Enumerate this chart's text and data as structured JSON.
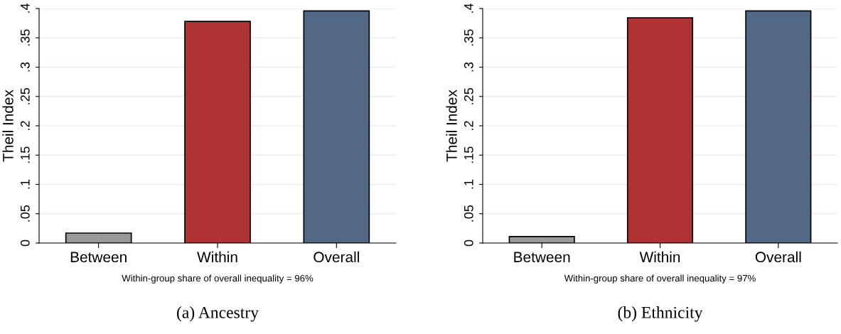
{
  "chart_data": [
    {
      "type": "bar",
      "title": "(a) Ancestry",
      "ylabel": "Theil Index",
      "categories": [
        "Between",
        "Within",
        "Overall"
      ],
      "values": [
        0.017,
        0.378,
        0.396
      ],
      "colors": [
        "#999999",
        "#b03333",
        "#526986"
      ],
      "ylim": [
        0,
        0.4
      ],
      "yticks": [
        {
          "value": 0,
          "label": "0"
        },
        {
          "value": 0.05,
          "label": ".05"
        },
        {
          "value": 0.1,
          "label": ".1"
        },
        {
          "value": 0.15,
          "label": ".15"
        },
        {
          "value": 0.2,
          "label": ".2"
        },
        {
          "value": 0.25,
          "label": ".25"
        },
        {
          "value": 0.3,
          "label": ".3"
        },
        {
          "value": 0.35,
          "label": ".35"
        },
        {
          "value": 0.4,
          "label": ".4"
        }
      ],
      "grid": "y",
      "annotations": [
        "Within-group share of overall inequality = 96%"
      ]
    },
    {
      "type": "bar",
      "title": "(b) Ethnicity",
      "ylabel": "Theil Index",
      "categories": [
        "Between",
        "Within",
        "Overall"
      ],
      "values": [
        0.011,
        0.384,
        0.396
      ],
      "colors": [
        "#999999",
        "#b03333",
        "#526986"
      ],
      "ylim": [
        0,
        0.4
      ],
      "yticks": [
        {
          "value": 0,
          "label": "0"
        },
        {
          "value": 0.05,
          "label": ".05"
        },
        {
          "value": 0.1,
          "label": ".1"
        },
        {
          "value": 0.15,
          "label": ".15"
        },
        {
          "value": 0.2,
          "label": ".2"
        },
        {
          "value": 0.25,
          "label": ".25"
        },
        {
          "value": 0.3,
          "label": ".3"
        },
        {
          "value": 0.35,
          "label": ".35"
        },
        {
          "value": 0.4,
          "label": ".4"
        }
      ],
      "grid": "y",
      "annotations": [
        "Within-group share of overall inequality = 97%"
      ]
    }
  ]
}
